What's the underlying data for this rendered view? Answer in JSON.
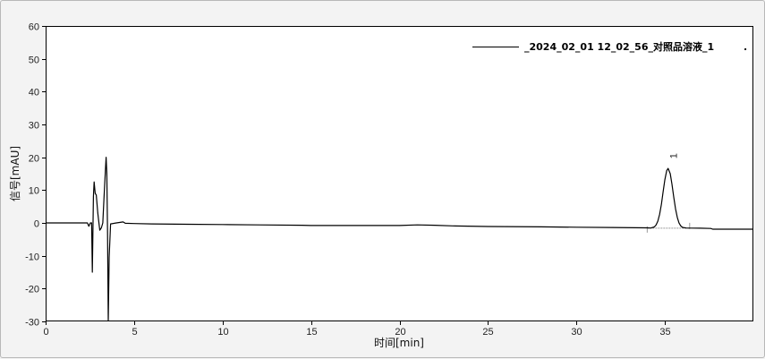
{
  "chart_data": {
    "type": "line",
    "title": "",
    "xlabel": "时间[min]",
    "ylabel": "信号[mAU]",
    "xlim": [
      0,
      40
    ],
    "ylim": [
      -30,
      60
    ],
    "xticks": [
      0,
      5,
      10,
      15,
      20,
      25,
      30,
      35
    ],
    "yticks": [
      -30,
      -20,
      -10,
      0,
      10,
      20,
      30,
      40,
      50,
      60
    ],
    "grid": false,
    "legend_position": "top-right",
    "legend_extra": ".",
    "colors": {
      "line": "#000000",
      "background": "#ffffff",
      "panel": "#f3f3f3",
      "integration_baseline": "#999999"
    },
    "series": [
      {
        "name": "_2024_02_01 12_02_56_对照品溶液_1",
        "points": [
          [
            0,
            0
          ],
          [
            2.36,
            0
          ],
          [
            2.44,
            -1
          ],
          [
            2.53,
            0
          ],
          [
            2.6,
            0
          ],
          [
            2.64,
            -15
          ],
          [
            2.7,
            8
          ],
          [
            2.74,
            12.5
          ],
          [
            2.8,
            9
          ],
          [
            2.86,
            8.5
          ],
          [
            2.95,
            3
          ],
          [
            3.06,
            -2.2
          ],
          [
            3.15,
            -1.5
          ],
          [
            3.23,
            0
          ],
          [
            3.3,
            8
          ],
          [
            3.38,
            16
          ],
          [
            3.42,
            20
          ],
          [
            3.46,
            15
          ],
          [
            3.5,
            -3
          ],
          [
            3.54,
            -30
          ],
          [
            3.59,
            -10.5
          ],
          [
            3.67,
            -0.3
          ],
          [
            4.0,
            0
          ],
          [
            4.38,
            0.3
          ],
          [
            4.5,
            -0.1
          ],
          [
            5,
            -0.2
          ],
          [
            6,
            -0.3
          ],
          [
            8,
            -0.4
          ],
          [
            10,
            -0.5
          ],
          [
            12,
            -0.6
          ],
          [
            14.5,
            -0.7
          ],
          [
            15,
            -0.8
          ],
          [
            18,
            -0.8
          ],
          [
            20,
            -0.8
          ],
          [
            21,
            -0.6
          ],
          [
            22,
            -0.7
          ],
          [
            23,
            -0.9
          ],
          [
            25,
            -1.1
          ],
          [
            28,
            -1.2
          ],
          [
            30,
            -1.3
          ],
          [
            32,
            -1.4
          ],
          [
            34,
            -1.5
          ],
          [
            34.2,
            -1.56
          ],
          [
            34.4,
            -1.23
          ],
          [
            34.5,
            -0.65
          ],
          [
            34.6,
            0.53
          ],
          [
            34.7,
            2.59
          ],
          [
            34.8,
            5.65
          ],
          [
            34.9,
            9.44
          ],
          [
            35.0,
            13.2
          ],
          [
            35.1,
            15.9
          ],
          [
            35.18,
            16.6
          ],
          [
            35.3,
            15.0
          ],
          [
            35.4,
            11.8
          ],
          [
            35.5,
            7.87
          ],
          [
            35.6,
            4.31
          ],
          [
            35.7,
            1.66
          ],
          [
            35.8,
            -0.03
          ],
          [
            35.9,
            -0.93
          ],
          [
            36.0,
            -1.35
          ],
          [
            36.2,
            -1.55
          ],
          [
            37,
            -1.6
          ],
          [
            37.6,
            -1.7
          ],
          [
            37.7,
            -1.9
          ],
          [
            40,
            -1.9
          ]
        ]
      }
    ],
    "peaks": [
      {
        "label": "1",
        "retention_time": 35.18,
        "height": 16.6,
        "baseline_start": 34.0,
        "baseline_end": 36.4,
        "baseline_value": -1.6
      }
    ]
  }
}
